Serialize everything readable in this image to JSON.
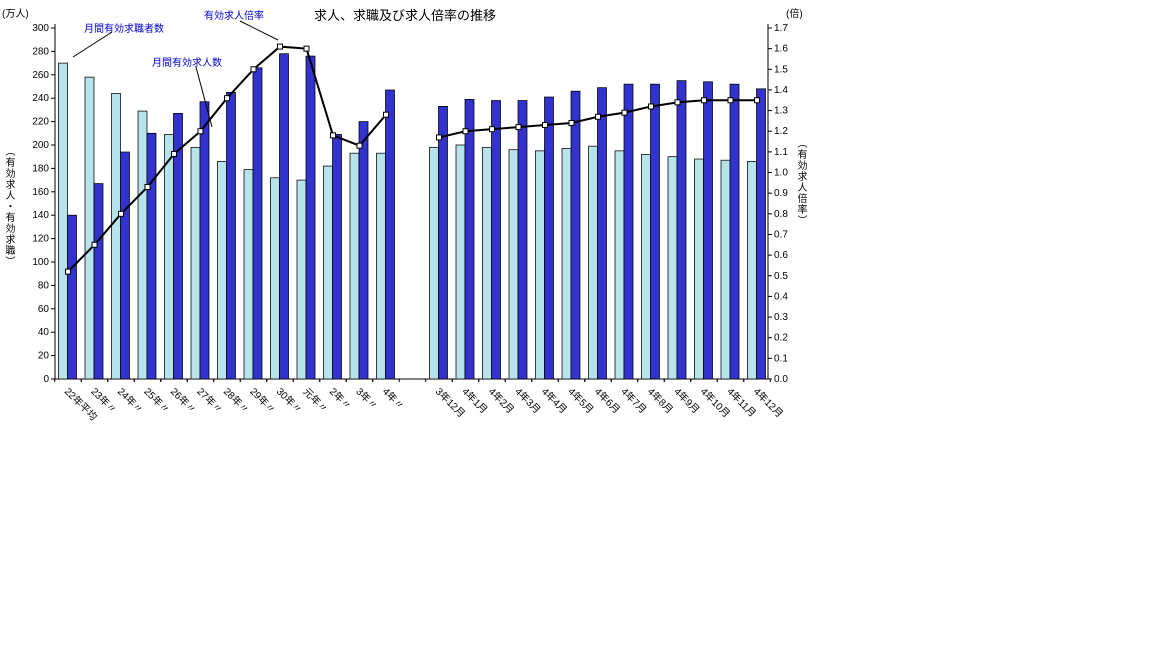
{
  "page": {
    "background": "#FFFFFF"
  },
  "chart_data": {
    "type": "bar+line",
    "title": "求人、求職及び求人倍率の推移",
    "left_axis": {
      "unit_label": "(万人)",
      "axis_title": "（有効求人・有効求職）",
      "min": 0,
      "max": 300,
      "step": 20
    },
    "right_axis": {
      "unit_label": "(倍)",
      "axis_title": "（有効求人倍率）",
      "min": 0.0,
      "max": 1.7,
      "step": 0.1
    },
    "annotation_color": "#0000CC",
    "annotations": [
      {
        "label": "月間有効求職者数"
      },
      {
        "label": "有効求人倍率"
      },
      {
        "label": "月間有効求人数"
      }
    ],
    "gap_after_index": 12,
    "categories": [
      "22年平均",
      "23年〃",
      "24年〃",
      "25年〃",
      "26年〃",
      "27年〃",
      "28年〃",
      "29年〃",
      "30年〃",
      "元年〃",
      "2年〃",
      "3年〃",
      "4年〃",
      "3年12月",
      "4年1月",
      "4年2月",
      "4年3月",
      "4年4月",
      "4年5月",
      "4年6月",
      "4年7月",
      "4年8月",
      "4年9月",
      "4年10月",
      "4年11月",
      "4年12月"
    ],
    "series": [
      {
        "name": "月間有効求職者数",
        "type": "bar",
        "axis": "left",
        "color": "#B7E4EA",
        "values": [
          270,
          258,
          244,
          229,
          209,
          198,
          186,
          179,
          172,
          170,
          182,
          193,
          193,
          198,
          200,
          198,
          196,
          195,
          197,
          199,
          195,
          192,
          190,
          188,
          187,
          186
        ]
      },
      {
        "name": "月間有効求人数",
        "type": "bar",
        "axis": "left",
        "color": "#3133CC",
        "values": [
          140,
          167,
          194,
          210,
          227,
          237,
          245,
          266,
          278,
          276,
          209,
          220,
          247,
          233,
          239,
          238,
          238,
          241,
          246,
          249,
          252,
          252,
          255,
          254,
          252,
          248
        ]
      },
      {
        "name": "有効求人倍率",
        "type": "line",
        "axis": "right",
        "color": "#000000",
        "marker_fill": "#FFFFFF",
        "values": [
          0.52,
          0.65,
          0.8,
          0.93,
          1.09,
          1.2,
          1.36,
          1.5,
          1.61,
          1.6,
          1.18,
          1.13,
          1.28,
          1.17,
          1.2,
          1.21,
          1.22,
          1.23,
          1.24,
          1.27,
          1.29,
          1.32,
          1.34,
          1.35,
          1.35,
          1.35
        ]
      }
    ]
  }
}
